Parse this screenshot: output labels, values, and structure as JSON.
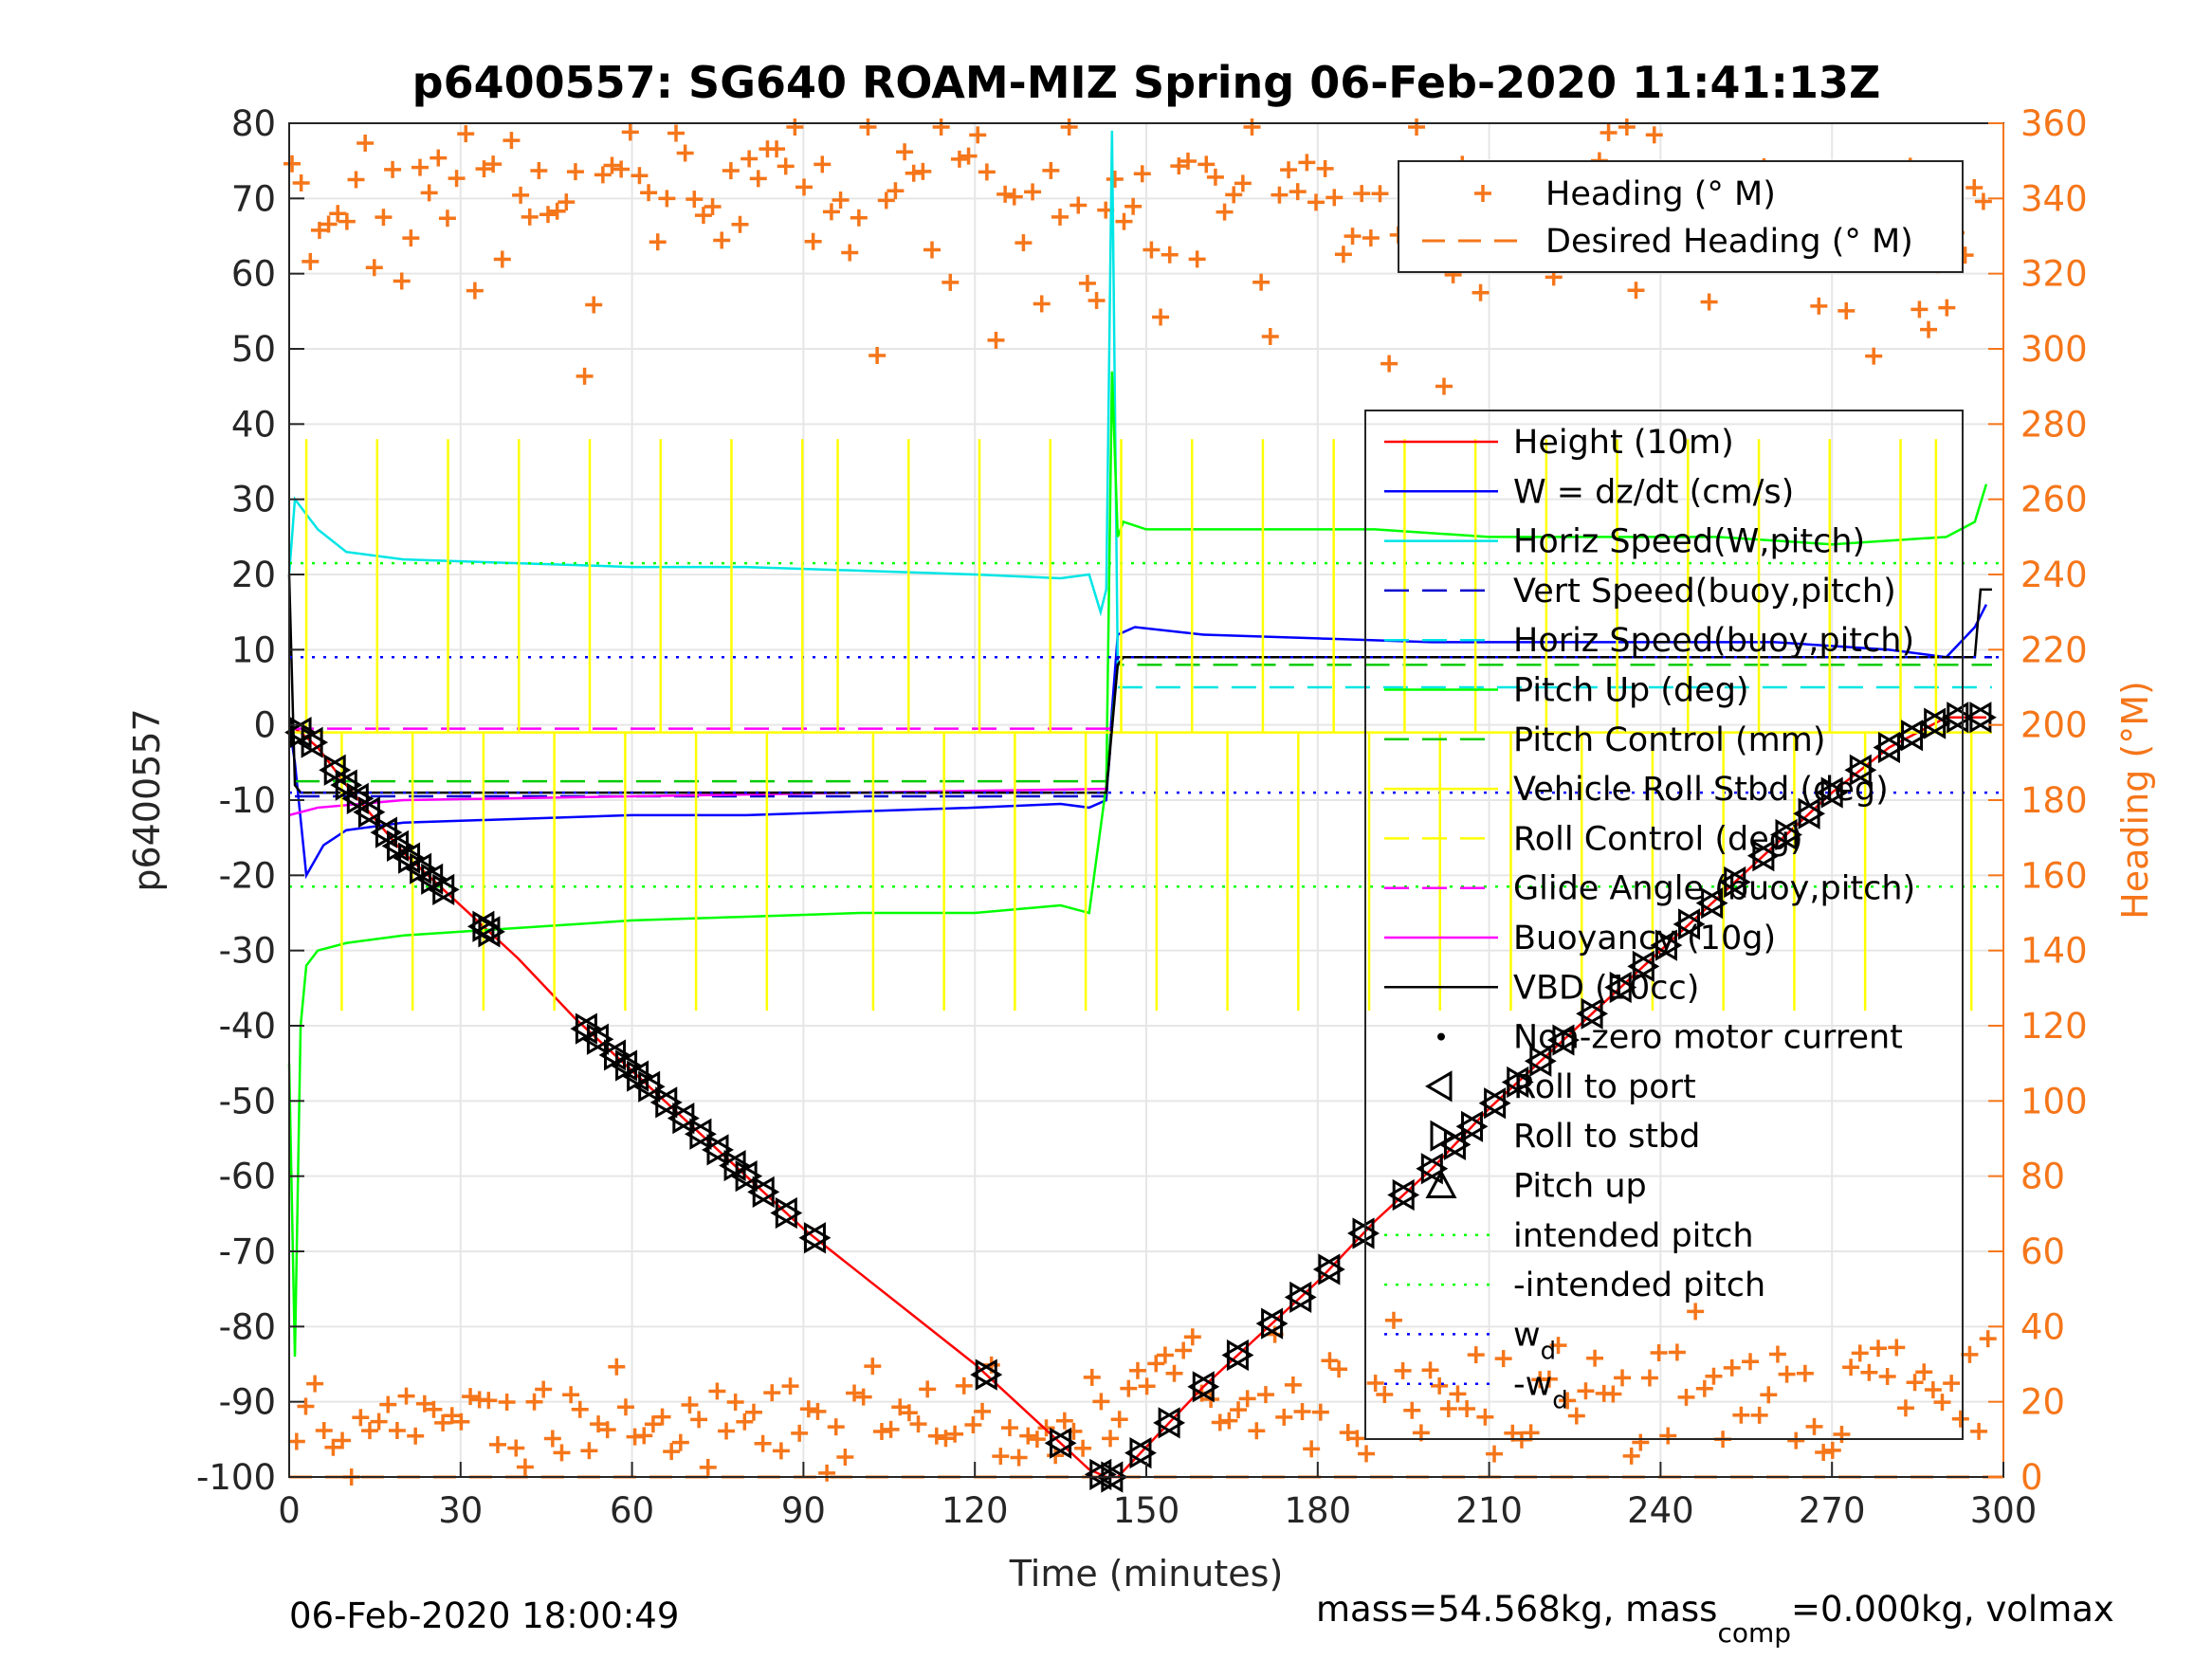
{
  "chart_data": {
    "type": "line",
    "title": "p6400557: SG640 ROAM-MIZ Spring 06-Feb-2020 11:41:13Z",
    "xlabel": "Time (minutes)",
    "ylabel": "p6400557",
    "ylabel_right": "Heading (°M)",
    "xlim": [
      0,
      300
    ],
    "ylim": [
      -100,
      80
    ],
    "ylim_right": [
      0,
      360
    ],
    "x_ticks": [
      "0",
      "30",
      "60",
      "90",
      "120",
      "150",
      "180",
      "210",
      "240",
      "270",
      "300"
    ],
    "y_ticks": [
      "80",
      "70",
      "60",
      "50",
      "40",
      "30",
      "20",
      "10",
      "0",
      "-10",
      "-20",
      "-30",
      "-40",
      "-50",
      "-60",
      "-70",
      "-80",
      "-90",
      "-100"
    ],
    "y_right_ticks": [
      "360",
      "340",
      "320",
      "300",
      "280",
      "260",
      "240",
      "220",
      "200",
      "180",
      "160",
      "140",
      "120",
      "100",
      "80",
      "60",
      "40",
      "20",
      "0"
    ],
    "grid": true,
    "legend_main": [
      {
        "label": "Height (10m)",
        "color": "#ff0000",
        "style": "solid"
      },
      {
        "label": "W = dz/dt (cm/s)",
        "color": "#0000ff",
        "style": "solid"
      },
      {
        "label": "Horiz Speed(W,pitch)",
        "color": "#00e5e5",
        "style": "solid"
      },
      {
        "label": "Vert Speed(buoy,pitch)",
        "color": "#0000cc",
        "style": "dashed"
      },
      {
        "label": "Horiz Speed(buoy,pitch)",
        "color": "#00e5e5",
        "style": "dashed"
      },
      {
        "label": "Pitch Up (deg)",
        "color": "#00ff00",
        "style": "solid"
      },
      {
        "label": "Pitch Control (mm)",
        "color": "#00cc00",
        "style": "dashed"
      },
      {
        "label": "Vehicle Roll Stbd (deg)",
        "color": "#ffff00",
        "style": "solid"
      },
      {
        "label": "Roll Control (deg)",
        "color": "#ffff00",
        "style": "dashed"
      },
      {
        "label": "Glide Angle (buoy,pitch)",
        "color": "#ff00ff",
        "style": "dashed"
      },
      {
        "label": "Buoyancy (10g)",
        "color": "#ff00ff",
        "style": "solid"
      },
      {
        "label": "VBD (10cc)",
        "color": "#000000",
        "style": "solid"
      },
      {
        "label": "Non-zero motor current",
        "color": "#000000",
        "style": "dot"
      },
      {
        "label": "Roll to port",
        "color": "#000000",
        "style": "tri-left"
      },
      {
        "label": "Roll to stbd",
        "color": "#000000",
        "style": "tri-right"
      },
      {
        "label": "Pitch up",
        "color": "#000000",
        "style": "tri-up"
      },
      {
        "label": "intended pitch",
        "color": "#00ff00",
        "style": "dotted"
      },
      {
        "label": "-intended pitch",
        "color": "#00ff00",
        "style": "dotted"
      },
      {
        "label": "w_d",
        "color": "#0000ff",
        "style": "dotted"
      },
      {
        "label": "-w_d",
        "color": "#0000ff",
        "style": "dotted"
      }
    ],
    "legend_heading": [
      {
        "label": "Heading (° M)",
        "color": "#f5761a",
        "style": "plus"
      },
      {
        "label": "Desired Heading (° M)",
        "color": "#f5761a",
        "style": "dashed"
      }
    ],
    "series": [
      {
        "name": "Height (10m)",
        "x": [
          0,
          2,
          5,
          10,
          20,
          30,
          40,
          50,
          60,
          70,
          80,
          90,
          100,
          110,
          120,
          130,
          140,
          143,
          145,
          150,
          160,
          170,
          180,
          190,
          200,
          210,
          220,
          230,
          240,
          250,
          260,
          270,
          280,
          290,
          297
        ],
        "y": [
          0,
          -1,
          -3,
          -8,
          -17,
          -24,
          -31,
          -39,
          -46,
          -53,
          -60,
          -67,
          -73,
          -79,
          -85,
          -92,
          -99,
          -100,
          -100,
          -96,
          -88,
          -81,
          -74,
          -66,
          -59,
          -51,
          -44,
          -37,
          -30,
          -23,
          -16,
          -9,
          -3,
          1,
          1
        ]
      },
      {
        "name": "W = dz/dt (cm/s)",
        "x": [
          0,
          1,
          3,
          6,
          10,
          20,
          40,
          60,
          80,
          100,
          120,
          135,
          140,
          143,
          144,
          145,
          148,
          160,
          180,
          200,
          220,
          240,
          260,
          280,
          290,
          295,
          297
        ],
        "y": [
          0,
          -5,
          -20,
          -16,
          -14,
          -13,
          -12.5,
          -12,
          -12,
          -11.5,
          -11,
          -10.5,
          -11,
          -10,
          2,
          12,
          13,
          12,
          11.5,
          11,
          11,
          11,
          11,
          10,
          9,
          13,
          16
        ]
      },
      {
        "name": "Horiz Speed(W,pitch)",
        "x": [
          0,
          1,
          3,
          5,
          10,
          20,
          40,
          60,
          80,
          100,
          120,
          135,
          140,
          142,
          143,
          144,
          145
        ],
        "y": [
          20,
          30,
          28,
          26,
          23,
          22,
          21.5,
          21,
          21,
          20.5,
          20,
          19.5,
          20,
          15,
          18,
          79,
          8
        ]
      },
      {
        "name": "Vert Speed(buoy,pitch)",
        "x": [
          1,
          143,
          145,
          298
        ],
        "y": [
          -9.5,
          -9.5,
          9,
          9
        ]
      },
      {
        "name": "Horiz Speed(buoy,pitch)",
        "x": [
          145,
          298
        ],
        "y": [
          5,
          5
        ]
      },
      {
        "name": "Pitch Up (deg)",
        "x": [
          0,
          1,
          2,
          3,
          5,
          10,
          20,
          40,
          60,
          80,
          100,
          120,
          135,
          140,
          143,
          144,
          145,
          146,
          150,
          170,
          190,
          210,
          230,
          250,
          270,
          290,
          295,
          297
        ],
        "y": [
          -45,
          -84,
          -40,
          -32,
          -30,
          -29,
          -28,
          -27,
          -26,
          -25.5,
          -25,
          -25,
          -24,
          -25,
          -8,
          47,
          25,
          27,
          26,
          26,
          26,
          25,
          25,
          25,
          24,
          25,
          27,
          32
        ]
      },
      {
        "name": "Pitch Control (mm)",
        "x": [
          1,
          143,
          145,
          298
        ],
        "y": [
          -7.5,
          -7.5,
          8,
          8
        ]
      },
      {
        "name": "Vehicle Roll Stbd (deg)",
        "x": [
          0,
          298
        ],
        "y": [
          -1,
          -1
        ]
      },
      {
        "name": "Glide Angle (buoy,pitch)",
        "x": [
          0,
          145
        ],
        "y": [
          -0.5,
          -0.5
        ]
      },
      {
        "name": "Buoyancy (10g)",
        "x": [
          0,
          5,
          20,
          60,
          100,
          143
        ],
        "y": [
          -12,
          -11,
          -10,
          -9.5,
          -9,
          -8.5
        ]
      },
      {
        "name": "VBD (10cc)",
        "x": [
          0,
          1,
          2,
          143,
          145,
          146,
          295,
          296,
          298
        ],
        "y": [
          20,
          -8,
          -9,
          -9,
          8,
          9,
          9,
          18,
          18
        ]
      },
      {
        "name": "intended pitch",
        "x": [
          0,
          300
        ],
        "y": [
          21.5,
          21.5
        ]
      },
      {
        "name": "-intended pitch",
        "x": [
          0,
          300
        ],
        "y": [
          -21.5,
          -21.5
        ]
      },
      {
        "name": "w_d",
        "x": [
          0,
          300
        ],
        "y": [
          9,
          9
        ]
      },
      {
        "name": "-w_d",
        "x": [
          0,
          300
        ],
        "y": [
          -9,
          -9
        ]
      },
      {
        "name": "Desired Heading (° M)",
        "x": [
          0,
          300
        ],
        "y_right": [
          0,
          0
        ]
      }
    ],
    "roll_markers_x": [
      2,
      4,
      8,
      10,
      12,
      14,
      17,
      19,
      21,
      23,
      25,
      27,
      34,
      35,
      52,
      54,
      57,
      59,
      61,
      63,
      66,
      69,
      72,
      75,
      78,
      80,
      83,
      87,
      92,
      122,
      135,
      142,
      144,
      149,
      154,
      160,
      166,
      172,
      177,
      182,
      188,
      195,
      200,
      204,
      207,
      211,
      215,
      219,
      223,
      228,
      233,
      237,
      241,
      245,
      249,
      253,
      258,
      262,
      266,
      270,
      275,
      280,
      284,
      288,
      292,
      296
    ],
    "heading_segments": {
      "dive_heading_high": [
        342,
        350,
        335,
        345,
        350,
        340,
        345,
        338,
        342,
        344,
        348,
        330,
        325,
        320,
        340,
        345,
        335,
        300,
        355,
        360,
        350,
        345
      ],
      "dive_heading_low": [
        10,
        15,
        12,
        18,
        20,
        22,
        25,
        18,
        15,
        10,
        8,
        12,
        18,
        20,
        15,
        10,
        5,
        2
      ],
      "climb_heading_high": [
        340,
        345,
        350,
        335,
        340,
        330,
        320,
        345,
        350,
        340,
        330,
        325,
        345,
        350,
        335,
        340,
        330,
        320,
        310,
        305,
        300,
        355
      ],
      "climb_heading_low": [
        15,
        20,
        25,
        30,
        25,
        20,
        15,
        10,
        20,
        30,
        35,
        40,
        30,
        25,
        20,
        15,
        10,
        5,
        15,
        20,
        25,
        30,
        35,
        40,
        20,
        15,
        10
      ]
    }
  },
  "footer": {
    "timestamp": "06-Feb-2020 18:00:49",
    "mass_text": "mass=54.568kg, mass",
    "mass_sub": "comp",
    "mass_tail": "=0.000kg, volmax"
  }
}
